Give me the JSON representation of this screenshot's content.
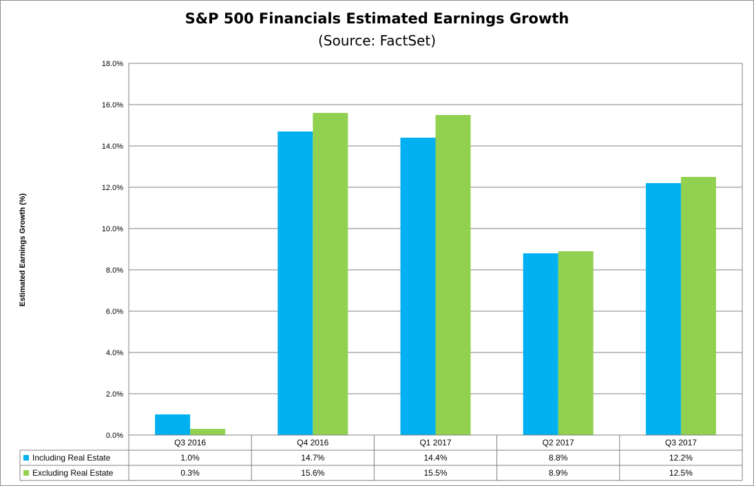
{
  "chart_data": {
    "type": "bar",
    "title": "S&P 500 Financials Estimated Earnings Growth",
    "subtitle": "(Source: FactSet)",
    "ylabel": "Estimated Earnings Growth (%)",
    "xlabel": "",
    "categories": [
      "Q3 2016",
      "Q4 2016",
      "Q1 2017",
      "Q2 2017",
      "Q3 2017"
    ],
    "series": [
      {
        "name": "Including Real Estate",
        "values": [
          1.0,
          14.7,
          14.4,
          8.8,
          12.2
        ],
        "labels": [
          "1.0%",
          "14.7%",
          "14.4%",
          "8.8%",
          "12.2%"
        ],
        "color": "#00b0f0"
      },
      {
        "name": "Excluding Real Estate",
        "values": [
          0.3,
          15.6,
          15.5,
          8.9,
          12.5
        ],
        "labels": [
          "0.3%",
          "15.6%",
          "15.5%",
          "8.9%",
          "12.5%"
        ],
        "color": "#92d050"
      }
    ],
    "ylim": [
      0,
      18
    ],
    "yticks": [
      0,
      2,
      4,
      6,
      8,
      10,
      12,
      14,
      16,
      18
    ],
    "ytick_labels": [
      "0.0%",
      "2.0%",
      "4.0%",
      "6.0%",
      "8.0%",
      "10.0%",
      "12.0%",
      "14.0%",
      "16.0%",
      "18.0%"
    ],
    "grid": true,
    "legend": "data-table"
  }
}
